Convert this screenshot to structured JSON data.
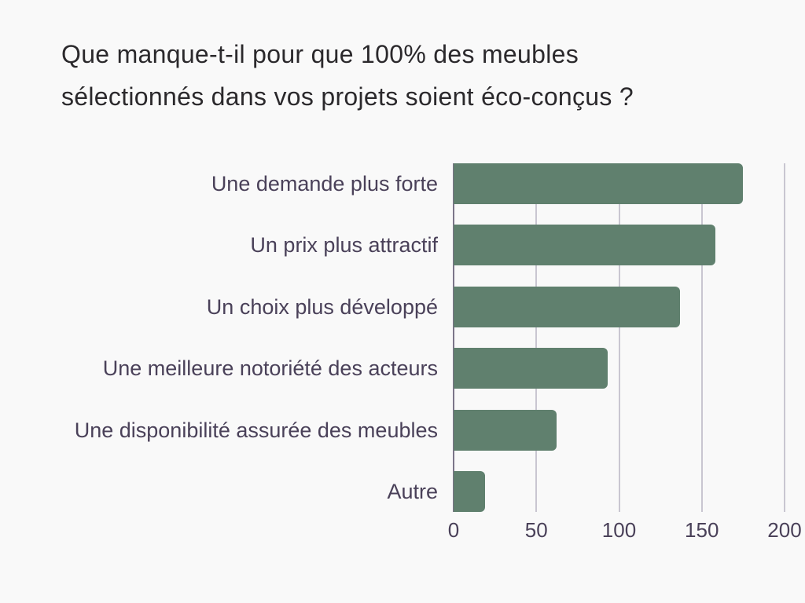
{
  "title": {
    "line1": "Que manque-t-il pour que 100% des meubles",
    "line2": "sélectionnés dans vos projets soient éco-conçus ?"
  },
  "colors": {
    "background": "#f9f9f9",
    "bar": "#60806e",
    "gridline": "#c9c6d1",
    "axis_line": "#7c7589",
    "label_text": "#4a4159",
    "title_text": "#2b292c"
  },
  "chart_data": {
    "type": "bar",
    "orientation": "horizontal",
    "title": "Que manque-t-il pour que 100% des meubles sélectionnés dans vos projets soient éco-conçus ?",
    "categories": [
      "Une demande plus forte",
      "Un prix plus attractif",
      "Un choix plus développé",
      "Une meilleure notoriété des acteurs",
      "Une disponibilité assurée des meubles",
      "Autre"
    ],
    "values": [
      175,
      158,
      137,
      93,
      62,
      19
    ],
    "xlabel": "",
    "ylabel": "",
    "xlim": [
      0,
      200
    ],
    "x_ticks": [
      0,
      50,
      100,
      150,
      200
    ],
    "grid": true,
    "legend": false
  }
}
